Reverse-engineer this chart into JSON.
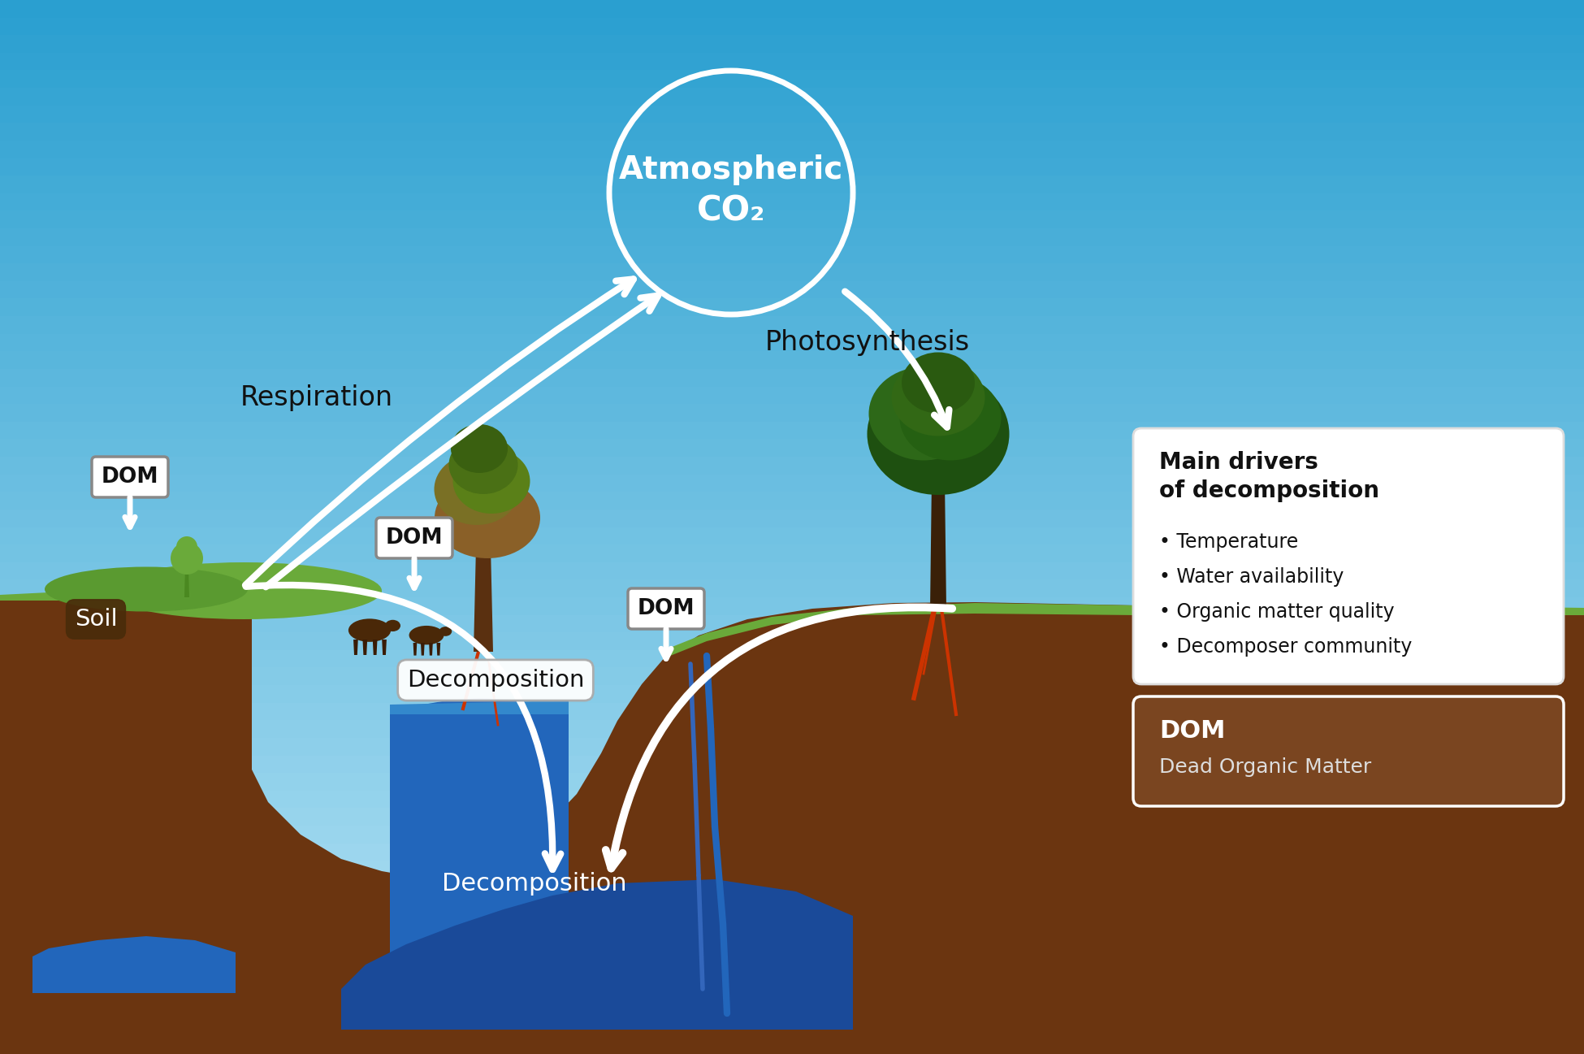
{
  "figsize": [
    19.5,
    12.97
  ],
  "dpi": 100,
  "sky_top": "#2a9fd0",
  "sky_bottom": "#b8e4f5",
  "white": "#ffffff",
  "black": "#111111",
  "brown_dark": "#3a1a06",
  "brown_med": "#6b3510",
  "brown_soil": "#7a4520",
  "brown_light": "#9a6040",
  "green_hill": "#6aaa3a",
  "green_dark": "#3a7010",
  "green_tree": "#4a8a1c",
  "ocean_blue": "#2266bb",
  "ocean_dark": "#1a4488",
  "water_blue": "#3388cc",
  "red_root": "#cc3300",
  "atm_text1": "Atmospheric",
  "atm_text2": "CO₂",
  "respiration_label": "Respiration",
  "photosynthesis_label": "Photosynthesis",
  "decomp_top_label": "Decomposition",
  "decomp_bottom_label": "Decomposition",
  "soil_label": "Soil",
  "dom_label": "DOM",
  "box_title": "Main drivers\nof decomposition",
  "box_items": [
    "• Temperature",
    "• Water availability",
    "• Organic matter quality",
    "• Decomposer community"
  ],
  "dom_box_title": "DOM",
  "dom_box_subtitle": "Dead Organic Matter"
}
